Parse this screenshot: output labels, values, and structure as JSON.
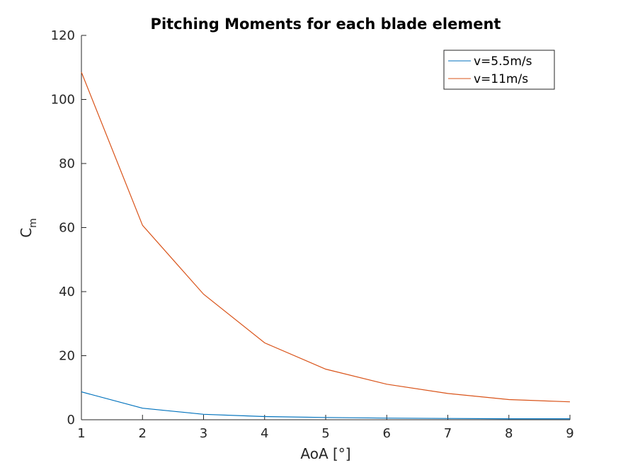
{
  "chart_data": {
    "type": "line",
    "title": "Pitching Moments for each blade element",
    "xlabel": "AoA [°]",
    "ylabel": "C",
    "ylabel_subscript": "m",
    "xlim": [
      1,
      9
    ],
    "ylim": [
      0,
      120
    ],
    "xticks": [
      1,
      2,
      3,
      4,
      5,
      6,
      7,
      8,
      9
    ],
    "yticks": [
      0,
      20,
      40,
      60,
      80,
      100,
      120
    ],
    "grid": false,
    "legend_position": "top-right",
    "x": [
      1,
      2,
      3,
      4,
      5,
      6,
      7,
      8,
      9
    ],
    "series": [
      {
        "name": "v=5.5m/s",
        "color": "#0072BD",
        "values": [
          8.7,
          3.6,
          1.7,
          1.0,
          0.7,
          0.5,
          0.4,
          0.3,
          0.3
        ]
      },
      {
        "name": "v=11m/s",
        "color": "#D95319",
        "values": [
          108.5,
          60.7,
          39.2,
          24.0,
          15.8,
          11.1,
          8.2,
          6.3,
          5.6
        ]
      }
    ]
  }
}
